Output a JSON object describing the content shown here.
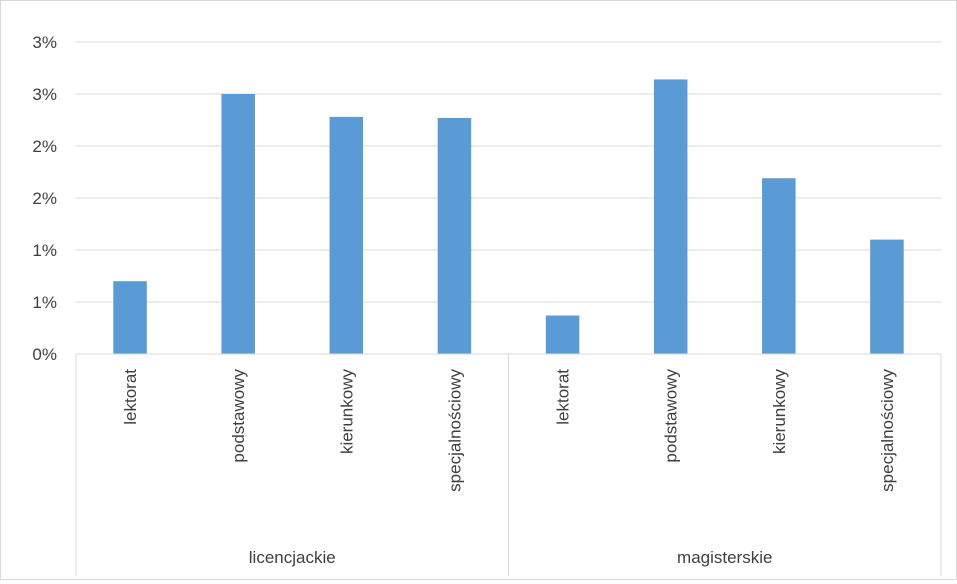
{
  "chart_data": {
    "type": "bar",
    "title": "",
    "xlabel": "",
    "ylabel": "",
    "ylim": [
      0,
      3
    ],
    "grid": true,
    "legend": "none",
    "y_ticks": [
      {
        "value": 0.0,
        "label": "0%"
      },
      {
        "value": 0.5,
        "label": "1%"
      },
      {
        "value": 1.0,
        "label": "1%"
      },
      {
        "value": 1.5,
        "label": "2%"
      },
      {
        "value": 2.0,
        "label": "2%"
      },
      {
        "value": 2.5,
        "label": "3%"
      },
      {
        "value": 3.0,
        "label": "3%"
      }
    ],
    "groups": [
      {
        "label": "licencjackie",
        "categories": [
          "lektorat",
          "podstawowy",
          "kierunkowy",
          "specjalnościowy"
        ]
      },
      {
        "label": "magisterskie",
        "categories": [
          "lektorat",
          "podstawowy",
          "kierunkowy",
          "specjalnościowy"
        ]
      }
    ],
    "series": [
      {
        "name": "",
        "color": "#5b9bd5",
        "values": [
          0.7,
          2.5,
          2.28,
          2.27,
          0.37,
          2.64,
          1.69,
          1.1
        ]
      }
    ]
  }
}
